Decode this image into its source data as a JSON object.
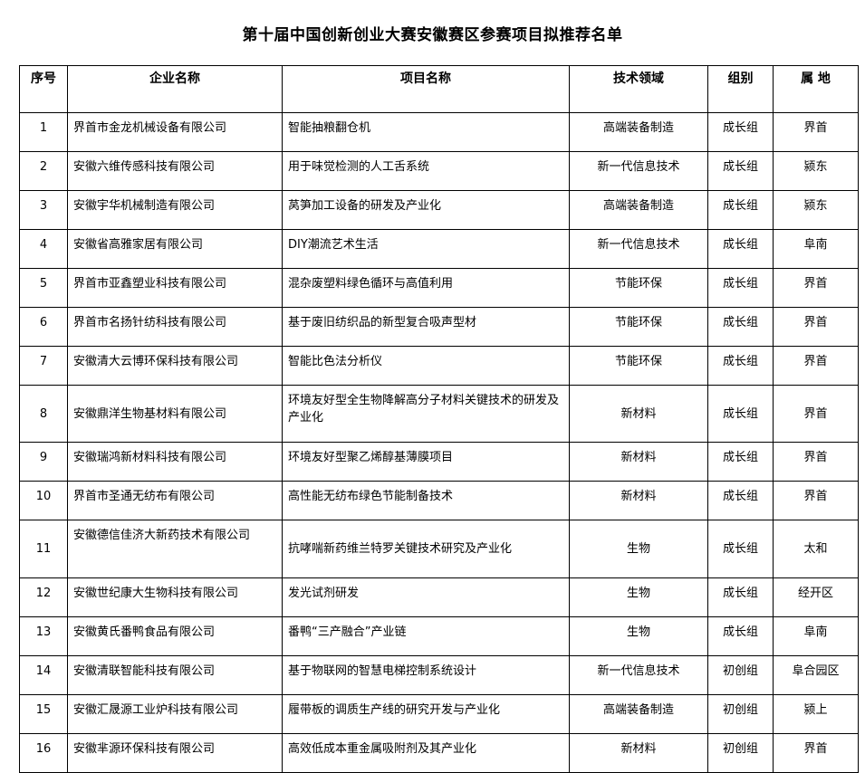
{
  "title": "第十届中国创新创业大赛安徽赛区参赛项目拟推荐名单",
  "columns": [
    "序号",
    "企业名称",
    "项目名称",
    "技术领域",
    "组别",
    "属 地"
  ],
  "rows": [
    [
      "1",
      "界首市金龙机械设备有限公司",
      "智能抽粮翻仓机",
      "高端装备制造",
      "成长组",
      "界首"
    ],
    [
      "2",
      "安徽六维传感科技有限公司",
      "用于味觉检测的人工舌系统",
      "新一代信息技术",
      "成长组",
      "颍东"
    ],
    [
      "3",
      "安徽宇华机械制造有限公司",
      "莴笋加工设备的研发及产业化",
      "高端装备制造",
      "成长组",
      "颍东"
    ],
    [
      "4",
      "安徽省高雅家居有限公司",
      "DIY潮流艺术生活",
      "新一代信息技术",
      "成长组",
      "阜南"
    ],
    [
      "5",
      "界首市亚鑫塑业科技有限公司",
      "混杂废塑料绿色循环与高值利用",
      "节能环保",
      "成长组",
      "界首"
    ],
    [
      "6",
      "界首市名扬针纺科技有限公司",
      "基于废旧纺织品的新型复合吸声型材",
      "节能环保",
      "成长组",
      "界首"
    ],
    [
      "7",
      "安徽清大云博环保科技有限公司",
      "智能比色法分析仪",
      "节能环保",
      "成长组",
      "界首"
    ],
    [
      "8",
      "安徽鼎洋生物基材料有限公司",
      "环境友好型全生物降解高分子材料关键技术的研发及产业化",
      "新材料",
      "成长组",
      "界首"
    ],
    [
      "9",
      "安徽瑞鸿新材料科技有限公司",
      "环境友好型聚乙烯醇基薄膜项目",
      "新材料",
      "成长组",
      "界首"
    ],
    [
      "10",
      "界首市圣通无纺布有限公司",
      "高性能无纺布绿色节能制备技术",
      "新材料",
      "成长组",
      "界首"
    ],
    [
      "11",
      "安徽德信佳济大新药技术有限公司",
      "抗哮喘新药维兰特罗关键技术研究及产业化",
      "生物",
      "成长组",
      "太和"
    ],
    [
      "12",
      "安徽世纪康大生物科技有限公司",
      "发光试剂研发",
      "生物",
      "成长组",
      "经开区"
    ],
    [
      "13",
      "安徽黄氏番鸭食品有限公司",
      "番鸭“三产融合”产业链",
      "生物",
      "成长组",
      "阜南"
    ],
    [
      "14",
      "安徽清联智能科技有限公司",
      "基于物联网的智慧电梯控制系统设计",
      "新一代信息技术",
      "初创组",
      "阜合园区"
    ],
    [
      "15",
      "安徽汇晟源工业炉科技有限公司",
      "履带板的调质生产线的研究开发与产业化",
      "高端装备制造",
      "初创组",
      "颍上"
    ],
    [
      "16",
      "安徽芈源环保科技有限公司",
      "高效低成本重金属吸附剂及其产业化",
      "新材料",
      "初创组",
      "界首"
    ]
  ]
}
